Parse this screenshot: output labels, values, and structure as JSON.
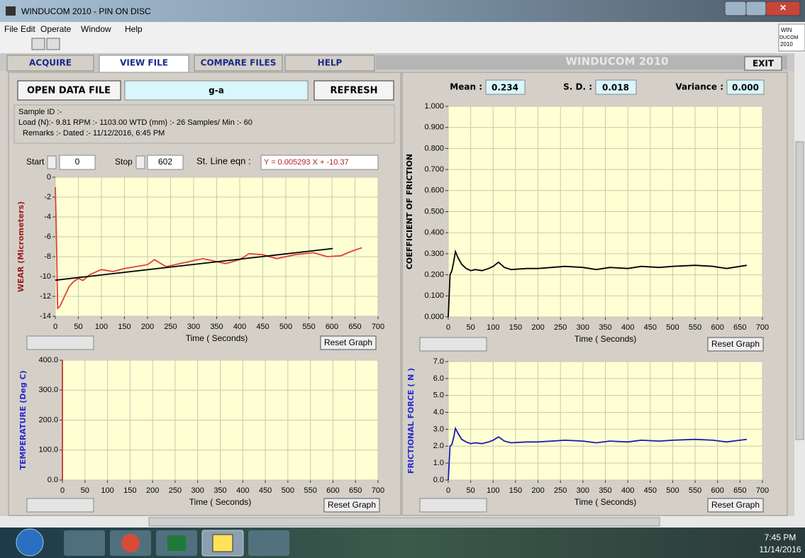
{
  "window": {
    "title": "WINDUCOM 2010 - PIN ON DISC"
  },
  "menu": [
    "File",
    "Edit",
    "Operate",
    "Window",
    "Help"
  ],
  "side_badge": [
    "WIN",
    "DUCOM",
    "2010"
  ],
  "tabs": [
    "ACQUIRE",
    "VIEW FILE",
    "COMPARE FILES",
    "HELP"
  ],
  "brand": "WINDUCOM 2010",
  "exit": "EXIT",
  "file_bar": {
    "open": "OPEN DATA FILE",
    "file_name": "g-a",
    "refresh": "REFRESH"
  },
  "info": [
    "Sample ID :-",
    "Load (N):-  9.81  RPM :- 1103.00  WTD (mm) :-  26  Samples/ Min :-  60",
    "Remarks :-  Dated :- 11/12/2016, 6:45 PM"
  ],
  "controls": {
    "start_label": "Start",
    "start": "0",
    "stop_label": "Stop",
    "stop": "602",
    "eqn_label": "St. Line eqn :",
    "eqn": "Y =  0.005293  X + -10.37"
  },
  "stats": {
    "mean_label": "Mean :",
    "mean": "0.234",
    "sd_label": "S. D. :",
    "sd": "0.018",
    "variance_label": "Variance :",
    "variance": "0.000"
  },
  "chart_data": [
    {
      "type": "line",
      "y_label": "WEAR (Micrometers)",
      "x_label": "Time ( Seconds)",
      "button": "Reset Graph",
      "grid": true,
      "xlim": [
        0,
        700
      ],
      "ylim": [
        -14,
        0
      ],
      "xticks": [
        0,
        50,
        100,
        150,
        200,
        250,
        300,
        350,
        400,
        450,
        500,
        550,
        600,
        650,
        700
      ],
      "yticks": [
        0,
        -2,
        -4,
        -6,
        -8,
        -10,
        -12,
        -14
      ],
      "series": [
        {
          "color": "#e0403a",
          "x": [
            0,
            2,
            5,
            10,
            20,
            30,
            40,
            50,
            60,
            75,
            100,
            125,
            150,
            175,
            200,
            215,
            240,
            260,
            290,
            320,
            350,
            370,
            400,
            420,
            450,
            480,
            520,
            560,
            590,
            620,
            640,
            665
          ],
          "values": [
            -1,
            -5,
            -13.2,
            -13,
            -12,
            -11,
            -10.5,
            -10.2,
            -10.4,
            -9.8,
            -9.3,
            -9.5,
            -9.2,
            -9,
            -8.8,
            -8.3,
            -9,
            -8.8,
            -8.5,
            -8.2,
            -8.5,
            -8.7,
            -8.3,
            -7.7,
            -7.8,
            -8.2,
            -7.8,
            -7.6,
            -8,
            -7.9,
            -7.5,
            -7.1
          ]
        },
        {
          "color": "#000000",
          "x": [
            0,
            602
          ],
          "values": [
            -10.37,
            -7.18
          ]
        }
      ]
    },
    {
      "type": "line",
      "y_label": "COEFFICIENT OF FRICTION",
      "x_label": "Time ( Seconds)",
      "button": "Reset Graph",
      "grid": true,
      "xlim": [
        0,
        700
      ],
      "ylim": [
        0,
        1
      ],
      "xticks": [
        0,
        50,
        100,
        150,
        200,
        250,
        300,
        350,
        400,
        450,
        500,
        550,
        600,
        650,
        700
      ],
      "yticks": [
        {
          "value": 0,
          "label": "0.000"
        },
        {
          "value": 0.1,
          "label": "0.100"
        },
        {
          "value": 0.2,
          "label": "0.200"
        },
        {
          "value": 0.3,
          "label": "0.300"
        },
        {
          "value": 0.4,
          "label": "0.400"
        },
        {
          "value": 0.5,
          "label": "0.500"
        },
        {
          "value": 0.6,
          "label": "0.600"
        },
        {
          "value": 0.7,
          "label": "0.700"
        },
        {
          "value": 0.8,
          "label": "0.800"
        },
        {
          "value": 0.9,
          "label": "0.900"
        },
        {
          "value": 1,
          "label": "1.000"
        }
      ],
      "series": [
        {
          "color": "#000000",
          "x": [
            0,
            2,
            4,
            8,
            12,
            16,
            22,
            30,
            40,
            50,
            60,
            75,
            90,
            100,
            112,
            125,
            140,
            175,
            200,
            230,
            260,
            300,
            330,
            360,
            400,
            430,
            470,
            500,
            550,
            590,
            620,
            650,
            665
          ],
          "values": [
            0,
            0.1,
            0.2,
            0.22,
            0.26,
            0.31,
            0.28,
            0.25,
            0.23,
            0.22,
            0.225,
            0.22,
            0.23,
            0.24,
            0.26,
            0.235,
            0.225,
            0.23,
            0.23,
            0.235,
            0.24,
            0.235,
            0.225,
            0.235,
            0.23,
            0.24,
            0.235,
            0.24,
            0.245,
            0.24,
            0.23,
            0.24,
            0.245
          ]
        }
      ]
    },
    {
      "type": "line",
      "y_label": "TEMPERATURE (Deg C)",
      "x_label": "Time ( Seconds)",
      "button": "Reset Graph",
      "grid": true,
      "xlim": [
        0,
        700
      ],
      "ylim": [
        0,
        400
      ],
      "xticks": [
        0,
        50,
        100,
        150,
        200,
        250,
        300,
        350,
        400,
        450,
        500,
        550,
        600,
        650,
        700
      ],
      "yticks": [
        {
          "value": 0,
          "label": "0.0"
        },
        {
          "value": 100,
          "label": "100.0"
        },
        {
          "value": 200,
          "label": "200.0"
        },
        {
          "value": 300,
          "label": "300.0"
        },
        {
          "value": 400,
          "label": "400.0"
        }
      ],
      "series": [
        {
          "color": "#c0392b",
          "x": [
            0,
            0
          ],
          "values": [
            0,
            400
          ]
        }
      ]
    },
    {
      "type": "line",
      "y_label": "FRICTIONAL FORCE ( N )",
      "x_label": "Time ( Seconds)",
      "button": "Reset Graph",
      "grid": true,
      "xlim": [
        0,
        700
      ],
      "ylim": [
        0,
        7
      ],
      "xticks": [
        0,
        50,
        100,
        150,
        200,
        250,
        300,
        350,
        400,
        450,
        500,
        550,
        600,
        650,
        700
      ],
      "yticks": [
        {
          "value": 0,
          "label": "0.0"
        },
        {
          "value": 1,
          "label": "1.0"
        },
        {
          "value": 2,
          "label": "2.0"
        },
        {
          "value": 3,
          "label": "3.0"
        },
        {
          "value": 4,
          "label": "4.0"
        },
        {
          "value": 5,
          "label": "5.0"
        },
        {
          "value": 6,
          "label": "6.0"
        },
        {
          "value": 7,
          "label": "7.0"
        }
      ],
      "series": [
        {
          "color": "#1a1ab0",
          "x": [
            0,
            2,
            4,
            8,
            12,
            16,
            22,
            30,
            40,
            50,
            60,
            75,
            90,
            100,
            112,
            125,
            140,
            175,
            200,
            230,
            260,
            300,
            330,
            360,
            400,
            430,
            470,
            500,
            550,
            590,
            620,
            650,
            665
          ],
          "values": [
            0,
            1,
            2,
            2.1,
            2.5,
            3.05,
            2.75,
            2.4,
            2.25,
            2.15,
            2.2,
            2.15,
            2.25,
            2.35,
            2.55,
            2.3,
            2.2,
            2.25,
            2.25,
            2.3,
            2.35,
            2.3,
            2.2,
            2.3,
            2.25,
            2.35,
            2.3,
            2.35,
            2.4,
            2.35,
            2.25,
            2.35,
            2.4
          ]
        }
      ]
    }
  ],
  "clock": {
    "time": "7:45 PM",
    "date": "11/14/2016"
  }
}
